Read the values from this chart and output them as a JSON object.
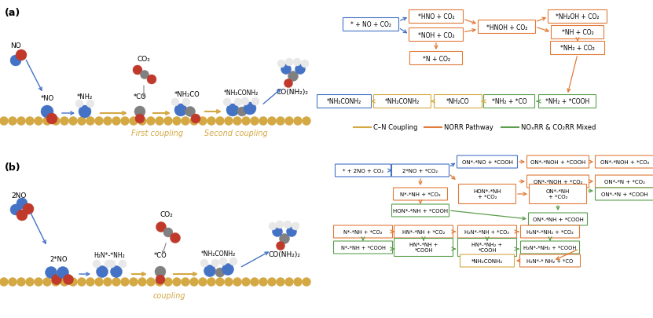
{
  "bg_color": "#ffffff",
  "gold_color": "#D4A843",
  "blue_color": "#4472C4",
  "red_color": "#C0392B",
  "gray_color": "#808080",
  "white_ball": "#E8E8E8",
  "orange_box_color": "#E07B39",
  "blue_box_color": "#4472C4",
  "green_box_color": "#5B9E4D",
  "legend_cn_color": "#D4A843",
  "legend_norr_color": "#E07B39",
  "legend_mixed_color": "#5B9E4D",
  "panel_a_label": "(a)",
  "panel_b_label": "(b)",
  "first_coupling": "First coupling",
  "second_coupling": "Second coupling",
  "coupling": "coupling",
  "cn_coupling": "C–N Coupling",
  "norr_pathway": "NORR Pathway",
  "noxrr_co2rr": "NOₓRR & CO₂RR Mixed",
  "no_label": "NO",
  "no2_label": "2NO",
  "star_no": "*NO",
  "star_nh2": "*NH₂",
  "star_co": "*CO",
  "star_nh2co": "*NH₂CO",
  "star_nh2conh2": "*NH₂CONH₂",
  "co_nh2_2": "CO(NH₂)₂",
  "co2_label": "CO₂",
  "two_star_no": "2*NO",
  "h2n_star_nh2": "H₂N*-*NH₂",
  "star_co_b": "*CO",
  "star_nh2conh2_b": "*NH₂CONH₂",
  "co_nh2_2_b": "CO(NH₂)₂",
  "fa_start": "* + NO + CO₂",
  "fa_hno": "*HNO + CO₂",
  "fa_noh": "*NOH + CO₂",
  "fa_n_co2": "*N + CO₂",
  "fa_hnoh": "*HNOH + CO₂",
  "fa_nh2oh": "*NH₂OH + CO₂",
  "fa_nh_co2": "*NH + CO₂",
  "fa_nh2_co2": "*NH₂ + CO₂",
  "fa_nh2conh2_left": "*NH₂CONH₂",
  "fa_nh2conh2_mid": "*NH₂CONH₂",
  "fa_nh2co": "*NH₂CO",
  "fa_nh2_co": "*NH₂ + *CO",
  "fa_nh2_cooh": "*NH₂ + *COOH",
  "fb_start": "* + 2NO + CO₂",
  "fb_2no_co2": "2*NO + *CO₂",
  "fb_on_no_cooh": "ON*-*NO + *COOH",
  "fb_on_noh_cooh": "ON*-*NOH + *COOH",
  "fb_on_noh_co2": "ON*-*NOH + *CO₂",
  "fb_on_n_co2": "ON*-*N + *CO₂",
  "fb_on_n_cooh": "ON*-*N + *COOH",
  "fb_n_nh_co2": "N*-*NH + *CO₂",
  "fb_hon_nh_co2": "HON*-*NH\n+ *CO₂",
  "fb_on_nh_co2": "ON*-*NH\n+ *CO₂",
  "fb_on_n_cooh2": "ON*-*N + *COOH",
  "fb_hon_nh_cooh": "HON*-*NH + *COOH",
  "fb_on_nh_cooh": "ON*-*NH + *COOH",
  "fb_on_nh_co2b": "ON*-*NH + *CO₂",
  "fb_n_nh_cooh": "N*-*NH + *COOH",
  "fb_hn_nh_co2": "HN*-*NH + *CO₂",
  "fb_h2n_nh_co2": "H₂N*-*NH + *CO₂",
  "fb_h2n_nh2_co2": "H₂N*-*NH₂ + *CO₂",
  "fb_n_nh_cooh_b": "N*-*NH + *COOH",
  "fb_hn_nh_cooh": "HN*-*NH +\n*COOH",
  "fb_hn_nh2_cooh": "HN*-*NH₂ +\n*COOH",
  "fb_h2n_nh2_cooh": "H₂N*-*NH₂ + *COOH",
  "fb_nh2conh2": "*NH₂CONH₂",
  "fb_h2n_nh2_co": "H₂N*-* NH₂ + *CO"
}
